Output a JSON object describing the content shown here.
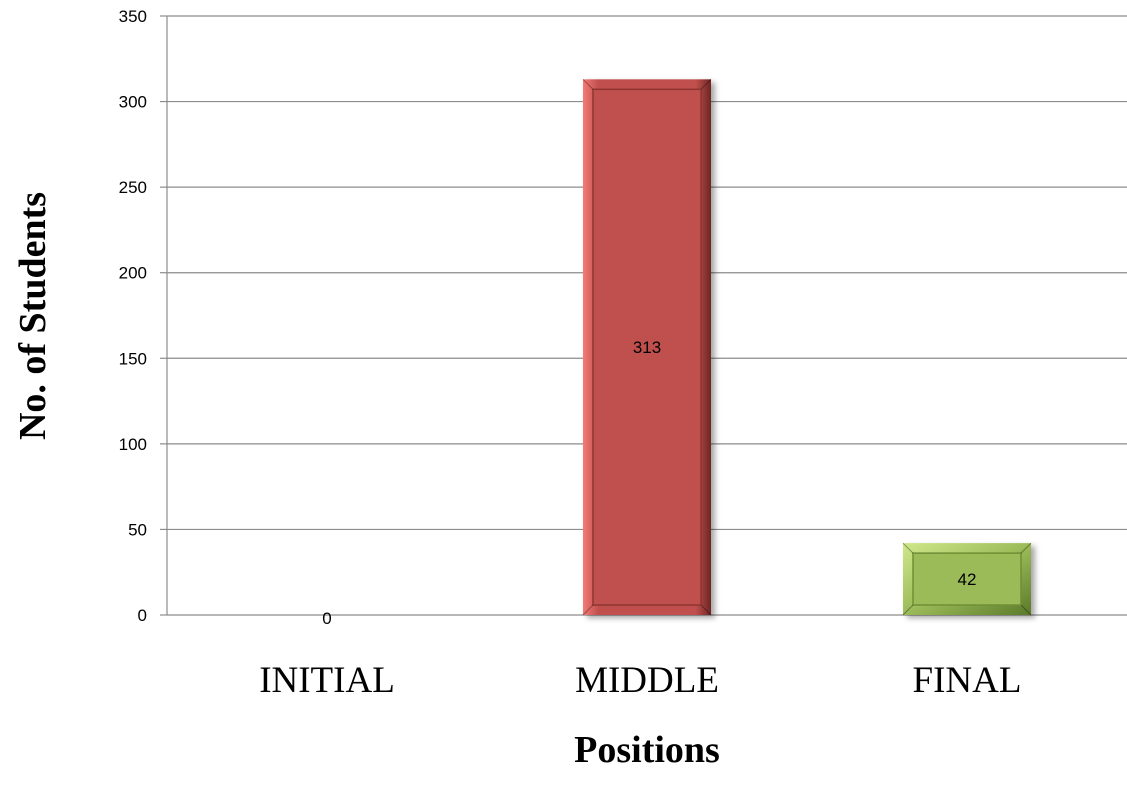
{
  "chart_data": {
    "type": "bar",
    "categories": [
      "INITIAL",
      "MIDDLE",
      "FINAL"
    ],
    "values": [
      0,
      313,
      42
    ],
    "data_labels": [
      "0",
      "313",
      "42"
    ],
    "title": "",
    "xlabel": "Positions",
    "ylabel": "No. of Students",
    "ylim": [
      0,
      350
    ],
    "yticks": [
      0,
      50,
      100,
      150,
      200,
      250,
      300,
      350
    ],
    "grid": true,
    "legend": "none",
    "bar_colors": [
      "#c0504d",
      "#c0504d",
      "#9bbb59"
    ]
  }
}
